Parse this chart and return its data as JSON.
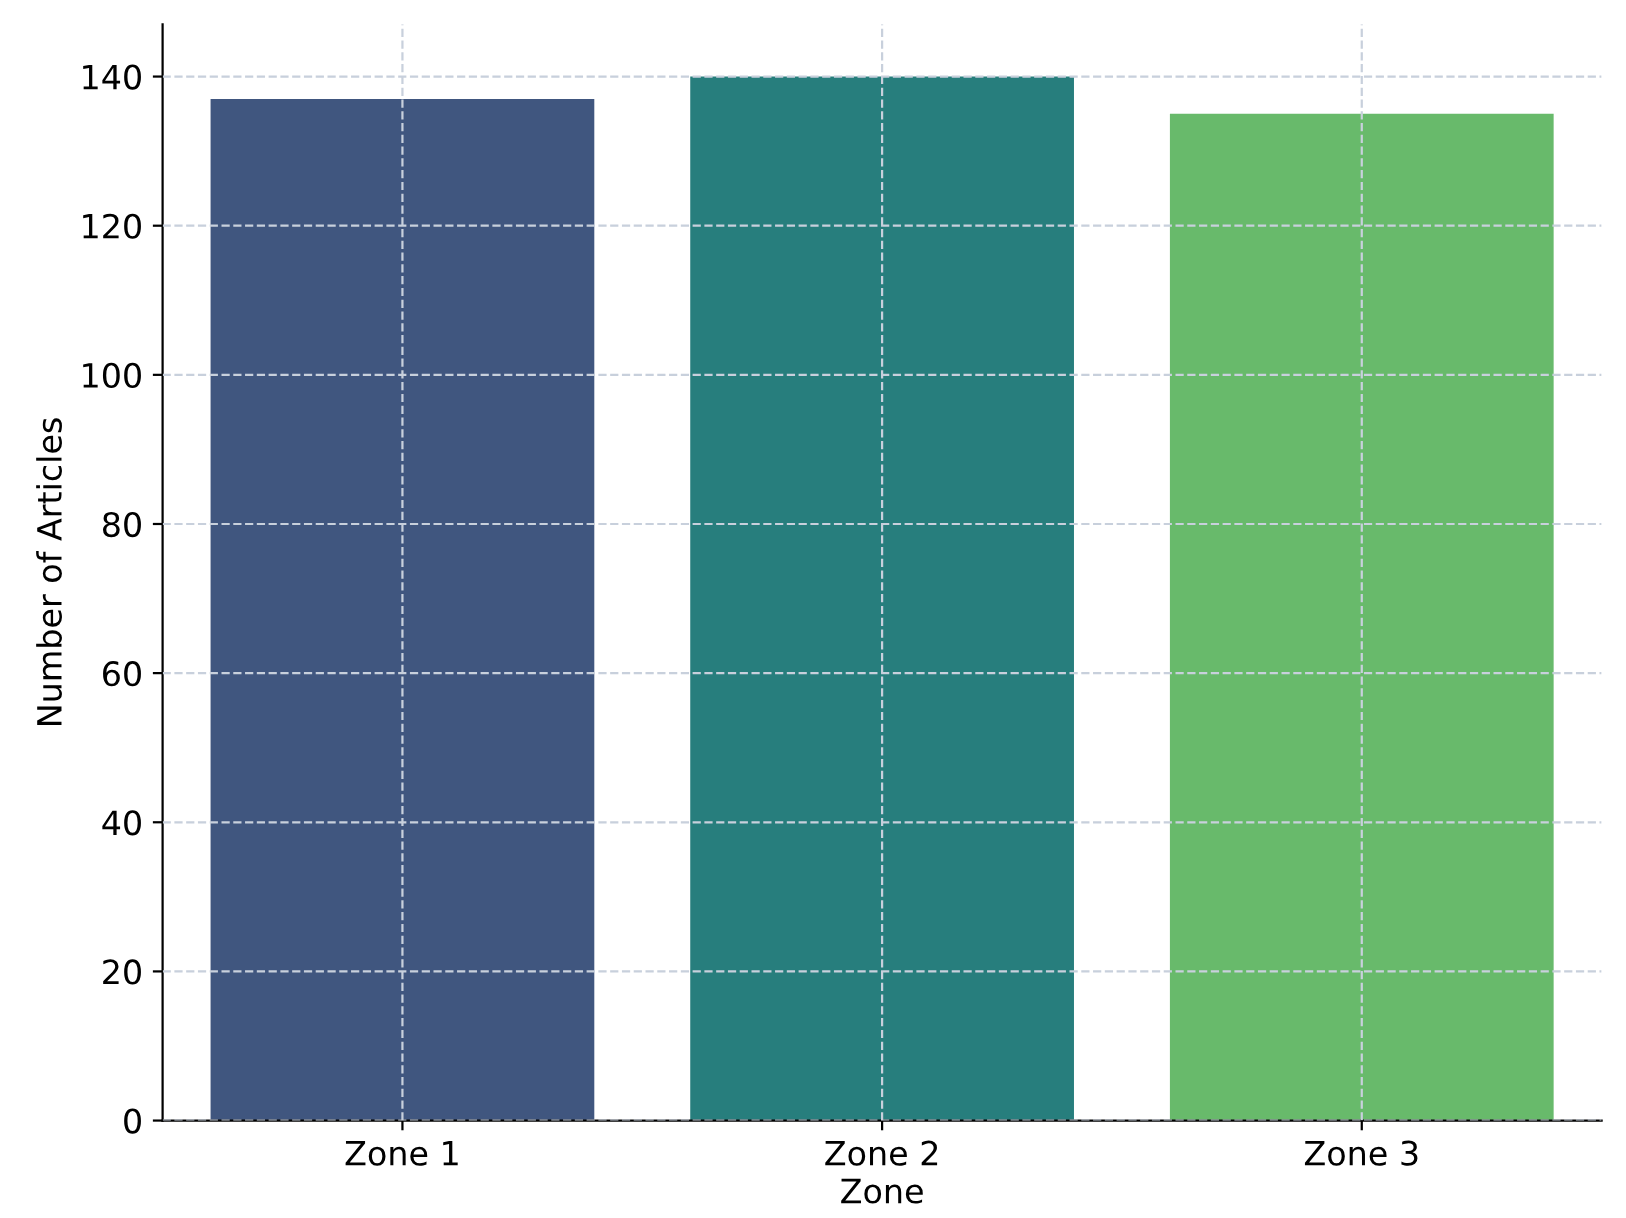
{
  "chart_data": {
    "type": "bar",
    "xlabel": "Zone",
    "ylabel": "Number of Articles",
    "categories": [
      "Zone 1",
      "Zone 2",
      "Zone 3"
    ],
    "values": [
      137,
      140,
      135
    ],
    "colors": [
      "#40567f",
      "#277e7d",
      "#68ba6b"
    ],
    "ylim": [
      0,
      147
    ],
    "yticks": [
      0,
      20,
      40,
      60,
      80,
      100,
      120,
      140
    ],
    "grid": true
  }
}
